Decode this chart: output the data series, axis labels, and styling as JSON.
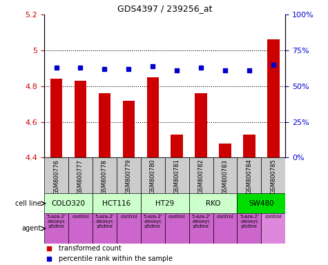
{
  "title": "GDS4397 / 239256_at",
  "samples": [
    "GSM800776",
    "GSM800777",
    "GSM800778",
    "GSM800779",
    "GSM800780",
    "GSM800781",
    "GSM800782",
    "GSM800783",
    "GSM800784",
    "GSM800785"
  ],
  "bar_values": [
    4.84,
    4.83,
    4.76,
    4.72,
    4.85,
    4.53,
    4.76,
    4.48,
    4.53,
    5.06
  ],
  "dot_values": [
    63,
    63,
    62,
    62,
    64,
    61,
    63,
    61,
    61,
    65
  ],
  "bar_color": "#cc0000",
  "dot_color": "#0000cc",
  "ylim_left": [
    4.4,
    5.2
  ],
  "ylim_right": [
    0,
    100
  ],
  "yticks_left": [
    4.4,
    4.6,
    4.8,
    5.0,
    5.2
  ],
  "ytick_labels_left": [
    "4.4",
    "4.6",
    "4.8",
    "5",
    "5.2"
  ],
  "yticks_right": [
    0,
    25,
    50,
    75,
    100
  ],
  "ytick_labels_right": [
    "0%",
    "25%",
    "50%",
    "75%",
    "100%"
  ],
  "hgrid_values": [
    4.6,
    4.8,
    5.0
  ],
  "cell_line_spans": [
    {
      "label": "COLO320",
      "start": 0,
      "end": 1,
      "color": "#ccffcc"
    },
    {
      "label": "HCT116",
      "start": 2,
      "end": 3,
      "color": "#ccffcc"
    },
    {
      "label": "HT29",
      "start": 4,
      "end": 5,
      "color": "#ccffcc"
    },
    {
      "label": "RKO",
      "start": 6,
      "end": 7,
      "color": "#ccffcc"
    },
    {
      "label": "SW480",
      "start": 8,
      "end": 9,
      "color": "#00dd00"
    }
  ],
  "agent_cells": [
    {
      "col": 0,
      "label": "5-aza-2'\n-deoxyc\nytidine",
      "color": "#cc66cc"
    },
    {
      "col": 1,
      "label": "control",
      "color": "#cc66cc"
    },
    {
      "col": 2,
      "label": "5-aza-2'\n-deoxyc\nytidine",
      "color": "#cc66cc"
    },
    {
      "col": 3,
      "label": "control",
      "color": "#cc66cc"
    },
    {
      "col": 4,
      "label": "5-aza-2'\n-deoxyc\nytidine",
      "color": "#cc66cc"
    },
    {
      "col": 5,
      "label": "control",
      "color": "#cc66cc"
    },
    {
      "col": 6,
      "label": "5-aza-2'\n-deoxyc\nytidine",
      "color": "#cc66cc"
    },
    {
      "col": 7,
      "label": "control",
      "color": "#cc66cc"
    },
    {
      "col": 8,
      "label": "5-aza-2'\n-deoxyc\nytidine",
      "color": "#cc66cc"
    },
    {
      "col": 9,
      "label": "control",
      "color": "#dd88dd"
    }
  ],
  "sample_bg_color": "#cccccc",
  "bar_width": 0.5
}
